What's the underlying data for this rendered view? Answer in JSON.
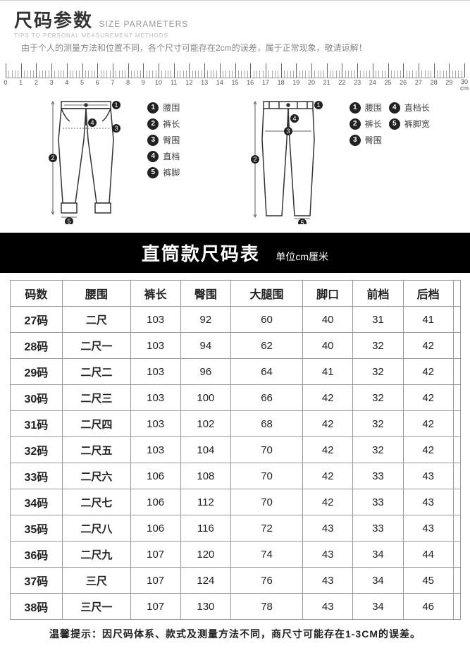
{
  "header": {
    "title_cn": "尺码参数",
    "title_en": "SIZE PARAMETERS",
    "sub_en": "TIPS TO PERSONAL MEASUREMENT METHODS",
    "note": "由于个人的测量方法和位置不同，各个尺寸可能存在2cm的误差，属于正常现象，敬请谅解！"
  },
  "ruler": {
    "min": 0,
    "max": 30,
    "unit_label": "30\ncm"
  },
  "legend_a": [
    {
      "n": "1",
      "label": "腰围"
    },
    {
      "n": "2",
      "label": "裤长"
    },
    {
      "n": "3",
      "label": "臀围"
    },
    {
      "n": "4",
      "label": "直档"
    },
    {
      "n": "5",
      "label": "裤脚"
    }
  ],
  "legend_b": [
    [
      {
        "n": "1",
        "label": "腰围"
      },
      {
        "n": "4",
        "label": "直档长"
      }
    ],
    [
      {
        "n": "2",
        "label": "裤长"
      },
      {
        "n": "5",
        "label": "裤脚宽"
      }
    ],
    [
      {
        "n": "3",
        "label": "臀围"
      }
    ]
  ],
  "table_title": {
    "main": "直筒款尺码表",
    "sub": "单位cm厘米"
  },
  "columns": [
    "码数",
    "腰围",
    "裤长",
    "臀围",
    "大腿围",
    "脚口",
    "前档",
    "后档",
    ""
  ],
  "rows": [
    [
      "27码",
      "二尺",
      "103",
      "92",
      "60",
      "40",
      "31",
      "41",
      ""
    ],
    [
      "28码",
      "二尺一",
      "103",
      "94",
      "62",
      "40",
      "32",
      "42",
      ""
    ],
    [
      "29码",
      "二尺二",
      "103",
      "96",
      "64",
      "41",
      "32",
      "42",
      ""
    ],
    [
      "30码",
      "二尺三",
      "103",
      "100",
      "66",
      "42",
      "32",
      "42",
      ""
    ],
    [
      "31码",
      "二尺四",
      "103",
      "102",
      "68",
      "42",
      "32",
      "42",
      ""
    ],
    [
      "32码",
      "二尺五",
      "103",
      "104",
      "70",
      "42",
      "32",
      "42",
      ""
    ],
    [
      "33码",
      "二尺六",
      "106",
      "108",
      "70",
      "42",
      "33",
      "43",
      ""
    ],
    [
      "34码",
      "二尺七",
      "106",
      "112",
      "70",
      "42",
      "33",
      "43",
      ""
    ],
    [
      "35码",
      "二尺八",
      "106",
      "116",
      "72",
      "43",
      "33",
      "43",
      ""
    ],
    [
      "36码",
      "二尺九",
      "107",
      "120",
      "74",
      "43",
      "34",
      "44",
      ""
    ],
    [
      "37码",
      "三尺",
      "107",
      "124",
      "76",
      "43",
      "34",
      "45",
      ""
    ],
    [
      "38码",
      "三尺一",
      "107",
      "130",
      "78",
      "43",
      "34",
      "46",
      ""
    ]
  ],
  "footer_tip": "温馨提示：因尺码体系、款式及测量方法不同，商尺寸可能存在1-3CM的误差。",
  "colors": {
    "border": "#999",
    "text": "#222",
    "muted": "#888",
    "black": "#000",
    "white": "#fff"
  }
}
